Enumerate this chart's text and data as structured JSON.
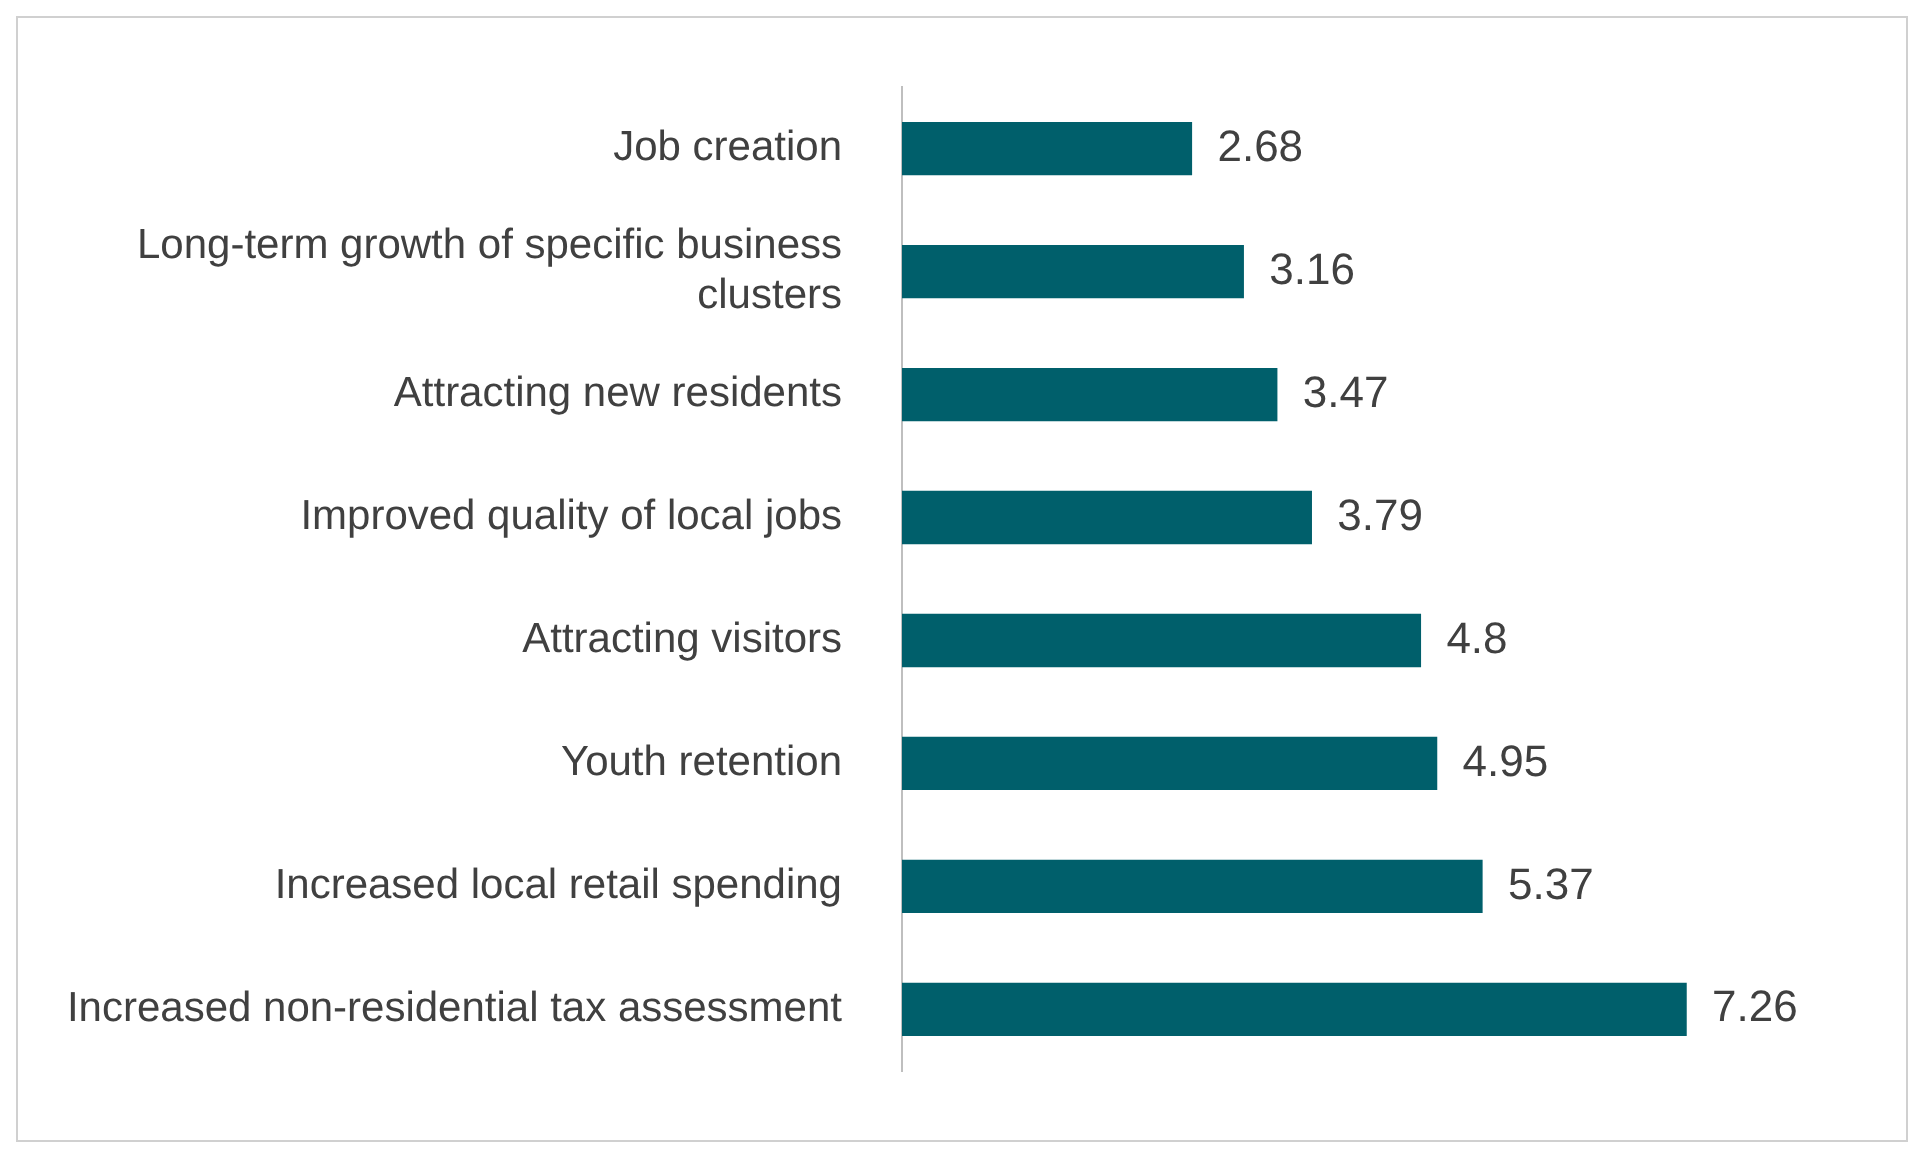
{
  "chart_data": {
    "type": "bar",
    "orientation": "horizontal",
    "categories": [
      "Job creation",
      "Long-term growth of specific business clusters",
      "Attracting new residents",
      "Improved quality of local jobs",
      "Attracting visitors",
      "Youth retention",
      "Increased local retail spending",
      "Increased non-residential tax assessment"
    ],
    "values": [
      2.68,
      3.16,
      3.47,
      3.79,
      4.8,
      4.95,
      5.37,
      7.26
    ],
    "color": "#005f6b",
    "data_labels": true,
    "legend": false
  }
}
